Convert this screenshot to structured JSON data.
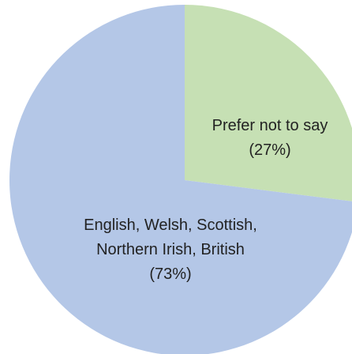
{
  "chart_data": {
    "type": "pie",
    "title": "",
    "slices": [
      {
        "label": "Prefer not to say",
        "value": 27,
        "value_label": "(27%)",
        "color": "#c6e0b4"
      },
      {
        "label": "English, Welsh, Scottish, Northern Irish, British",
        "value": 73,
        "value_label": "(73%)",
        "color": "#b4c7e7"
      }
    ],
    "legend": "none",
    "start_angle": "top",
    "direction": "clockwise",
    "labels_inside": true
  },
  "labels": {
    "slice_1_line_1": "Prefer not to say",
    "slice_1_line_2": "(27%)",
    "slice_2_line_1": "English, Welsh, Scottish,",
    "slice_2_line_2": "Northern Irish, British",
    "slice_2_line_3": "(73%)"
  }
}
